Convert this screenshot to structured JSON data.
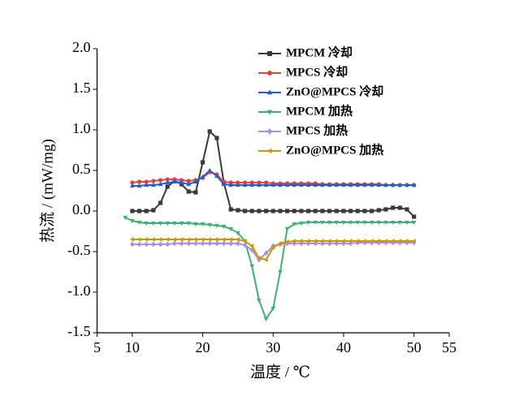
{
  "chart_data": {
    "type": "line",
    "xlabel": "温度 / ℃",
    "ylabel": "热流 / (mW/mg)",
    "xlim": [
      5,
      55
    ],
    "xticks": [
      5,
      10,
      20,
      30,
      40,
      50,
      55
    ],
    "ylim": [
      -1.5,
      2.0
    ],
    "yticks": [
      -1.5,
      {
        "value": -1.0,
        "label": "-1.0"
      },
      -0.5,
      {
        "value": 0.0,
        "label": "0.0"
      },
      0.5,
      {
        "value": 1.0,
        "label": "1.0"
      },
      1.5,
      {
        "value": 2.0,
        "label": "2.0"
      }
    ],
    "x": [
      9,
      10,
      11,
      12,
      13,
      14,
      15,
      16,
      17,
      18,
      19,
      20,
      21,
      22,
      23,
      24,
      25,
      26,
      27,
      28,
      29,
      30,
      31,
      32,
      33,
      34,
      35,
      36,
      37,
      38,
      39,
      40,
      41,
      42,
      43,
      44,
      45,
      46,
      47,
      48,
      49,
      50
    ],
    "series": [
      {
        "name": "MPCM 冷却",
        "color": "#3a3a3a",
        "marker": "square",
        "values": [
          null,
          0,
          0,
          0,
          0.01,
          0.1,
          0.3,
          0.37,
          0.33,
          0.24,
          0.23,
          0.6,
          0.98,
          0.9,
          0.35,
          0.02,
          0.01,
          0,
          0,
          0,
          0,
          0,
          0,
          0,
          0,
          0,
          0,
          0,
          0,
          0,
          0,
          0,
          0,
          0,
          0,
          0,
          0.01,
          0.02,
          0.04,
          0.04,
          0.02,
          -0.07
        ]
      },
      {
        "name": "MPCS 冷却",
        "color": "#e5403a",
        "marker": "circle",
        "values": [
          null,
          0.35,
          0.36,
          0.36,
          0.37,
          0.38,
          0.39,
          0.39,
          0.38,
          0.37,
          0.38,
          0.41,
          0.48,
          0.45,
          0.36,
          0.35,
          0.35,
          0.35,
          0.35,
          0.35,
          0.35,
          0.34,
          0.34,
          0.34,
          0.34,
          0.34,
          0.34,
          0.34,
          0.33,
          0.33,
          0.33,
          0.33,
          0.33,
          0.33,
          0.33,
          0.33,
          0.33,
          0.32,
          0.32,
          0.32,
          0.32,
          0.32
        ]
      },
      {
        "name": "ZnO@MPCS 冷却",
        "color": "#1f5fd6",
        "marker": "triangle-up",
        "values": [
          null,
          0.31,
          0.31,
          0.32,
          0.32,
          0.33,
          0.35,
          0.36,
          0.35,
          0.33,
          0.36,
          0.42,
          0.5,
          0.43,
          0.33,
          0.32,
          0.32,
          0.32,
          0.32,
          0.32,
          0.32,
          0.32,
          0.32,
          0.32,
          0.32,
          0.32,
          0.32,
          0.32,
          0.32,
          0.32,
          0.32,
          0.32,
          0.32,
          0.32,
          0.32,
          0.32,
          0.32,
          0.32,
          0.32,
          0.32,
          0.32,
          0.32
        ]
      },
      {
        "name": "MPCM 加热",
        "color": "#3cb371",
        "marker": "triangle-down",
        "values": [
          -0.08,
          -0.12,
          -0.14,
          -0.15,
          -0.15,
          -0.15,
          -0.15,
          -0.15,
          -0.15,
          -0.15,
          -0.16,
          -0.16,
          -0.17,
          -0.18,
          -0.19,
          -0.22,
          -0.27,
          -0.37,
          -0.68,
          -1.1,
          -1.33,
          -1.2,
          -0.75,
          -0.22,
          -0.16,
          -0.15,
          -0.14,
          -0.14,
          -0.14,
          -0.14,
          -0.14,
          -0.14,
          -0.14,
          -0.14,
          -0.14,
          -0.14,
          -0.14,
          -0.14,
          -0.14,
          -0.14,
          -0.14,
          -0.14
        ]
      },
      {
        "name": "MPCS 加热",
        "color": "#b08be8",
        "marker": "diamond",
        "values": [
          null,
          -0.41,
          -0.41,
          -0.41,
          -0.41,
          -0.41,
          -0.41,
          -0.4,
          -0.4,
          -0.4,
          -0.4,
          -0.4,
          -0.4,
          -0.4,
          -0.4,
          -0.4,
          -0.4,
          -0.42,
          -0.48,
          -0.6,
          -0.52,
          -0.43,
          -0.41,
          -0.4,
          -0.4,
          -0.4,
          -0.4,
          -0.4,
          -0.4,
          -0.4,
          -0.4,
          -0.4,
          -0.4,
          -0.39,
          -0.39,
          -0.39,
          -0.39,
          -0.39,
          -0.39,
          -0.39,
          -0.39,
          -0.39
        ]
      },
      {
        "name": "ZnO@MPCS 加热",
        "color": "#c99a00",
        "marker": "triangle-left",
        "values": [
          null,
          -0.35,
          -0.35,
          -0.35,
          -0.35,
          -0.35,
          -0.35,
          -0.35,
          -0.35,
          -0.35,
          -0.35,
          -0.35,
          -0.35,
          -0.35,
          -0.35,
          -0.35,
          -0.35,
          -0.37,
          -0.43,
          -0.58,
          -0.6,
          -0.45,
          -0.4,
          -0.38,
          -0.37,
          -0.37,
          -0.37,
          -0.37,
          -0.37,
          -0.37,
          -0.37,
          -0.37,
          -0.37,
          -0.37,
          -0.37,
          -0.37,
          -0.37,
          -0.37,
          -0.37,
          -0.37,
          -0.37,
          -0.37
        ]
      }
    ],
    "legend": "upper right"
  }
}
